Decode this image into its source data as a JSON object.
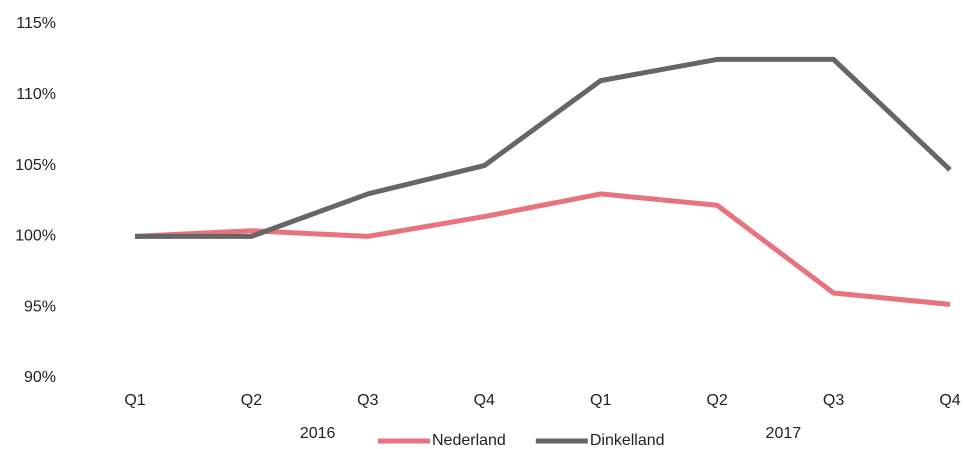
{
  "chart_data": {
    "type": "line",
    "categories": [
      "Q1",
      "Q2",
      "Q3",
      "Q4",
      "Q1",
      "Q2",
      "Q3",
      "Q4"
    ],
    "groups": [
      "2016",
      "2017"
    ],
    "series": [
      {
        "name": "Nederland",
        "color": "#e8737c",
        "values": [
          100,
          100.4,
          100,
          101.4,
          103,
          102.2,
          96,
          95.2
        ]
      },
      {
        "name": "Dinkelland",
        "color": "#666666",
        "values": [
          100,
          100,
          103,
          105,
          111,
          112.5,
          112.5,
          104.7
        ]
      }
    ],
    "ylim": [
      90,
      115
    ],
    "yticks": [
      {
        "value": 90,
        "label": "90%"
      },
      {
        "value": 95,
        "label": "95%"
      },
      {
        "value": 100,
        "label": "100%"
      },
      {
        "value": 105,
        "label": "105%"
      },
      {
        "value": 110,
        "label": "110%"
      },
      {
        "value": 115,
        "label": "115%"
      }
    ],
    "grid": false,
    "legend": "bottom"
  }
}
